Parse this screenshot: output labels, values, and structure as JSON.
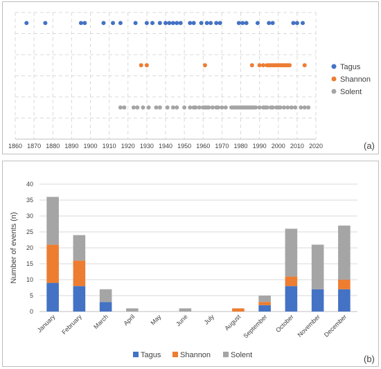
{
  "colors": {
    "Tagus": "#4472c4",
    "Shannon": "#ed7d31",
    "Solent": "#a5a5a5"
  },
  "chart_data": [
    {
      "panel_label": "(a)",
      "type": "scatter",
      "xlim": [
        1860,
        2020
      ],
      "xticks": [
        1860,
        1870,
        1880,
        1890,
        1900,
        1910,
        1920,
        1930,
        1940,
        1950,
        1960,
        1970,
        1980,
        1990,
        2000,
        2010,
        2020
      ],
      "grid": true,
      "legend_position": "right",
      "series": [
        {
          "name": "Tagus",
          "x": [
            1866,
            1876,
            1895,
            1897,
            1907,
            1912,
            1916,
            1924,
            1930,
            1933,
            1937,
            1940,
            1942,
            1944,
            1946,
            1948,
            1953,
            1955,
            1959,
            1962,
            1964,
            1967,
            1969,
            1979,
            1981,
            1983,
            1989,
            1995,
            1997,
            2008,
            2010,
            2013
          ]
        },
        {
          "name": "Shannon",
          "x": [
            1927,
            1930,
            1961,
            1986,
            1990,
            1992,
            1994,
            1995,
            1996,
            1997,
            1998,
            1999,
            2000,
            2001,
            2002,
            2003,
            2004,
            2005,
            2006,
            2014
          ]
        },
        {
          "name": "Solent",
          "x": [
            1916,
            1918,
            1923,
            1925,
            1928,
            1931,
            1935,
            1937,
            1941,
            1944,
            1946,
            1950,
            1953,
            1955,
            1956,
            1958,
            1960,
            1961,
            1962,
            1963,
            1965,
            1967,
            1968,
            1970,
            1972,
            1975,
            1976,
            1977,
            1978,
            1979,
            1980,
            1981,
            1982,
            1983,
            1984,
            1985,
            1986,
            1987,
            1988,
            1990,
            1992,
            1993,
            1994,
            1996,
            1997,
            1999,
            2000,
            2001,
            2003,
            2005,
            2007,
            2009,
            2012,
            2014,
            2016
          ]
        }
      ]
    },
    {
      "panel_label": "(b)",
      "type": "bar",
      "stacked": true,
      "ylabel": "Number of events (n)",
      "ylim": [
        0,
        40
      ],
      "yticks": [
        0,
        5,
        10,
        15,
        20,
        25,
        30,
        35,
        40
      ],
      "grid": true,
      "legend_position": "bottom",
      "categories": [
        "January",
        "February",
        "March",
        "April",
        "May",
        "June",
        "July",
        "August",
        "September",
        "October",
        "November",
        "December"
      ],
      "series": [
        {
          "name": "Tagus",
          "values": [
            9,
            8,
            3,
            0,
            0,
            0,
            0,
            0,
            2,
            8,
            7,
            7
          ]
        },
        {
          "name": "Shannon",
          "values": [
            12,
            8,
            0,
            0,
            0,
            0,
            0,
            1,
            1,
            3,
            0,
            3
          ]
        },
        {
          "name": "Solent",
          "values": [
            15,
            8,
            4,
            1,
            0,
            1,
            0,
            0,
            2,
            15,
            14,
            17
          ]
        }
      ]
    }
  ]
}
